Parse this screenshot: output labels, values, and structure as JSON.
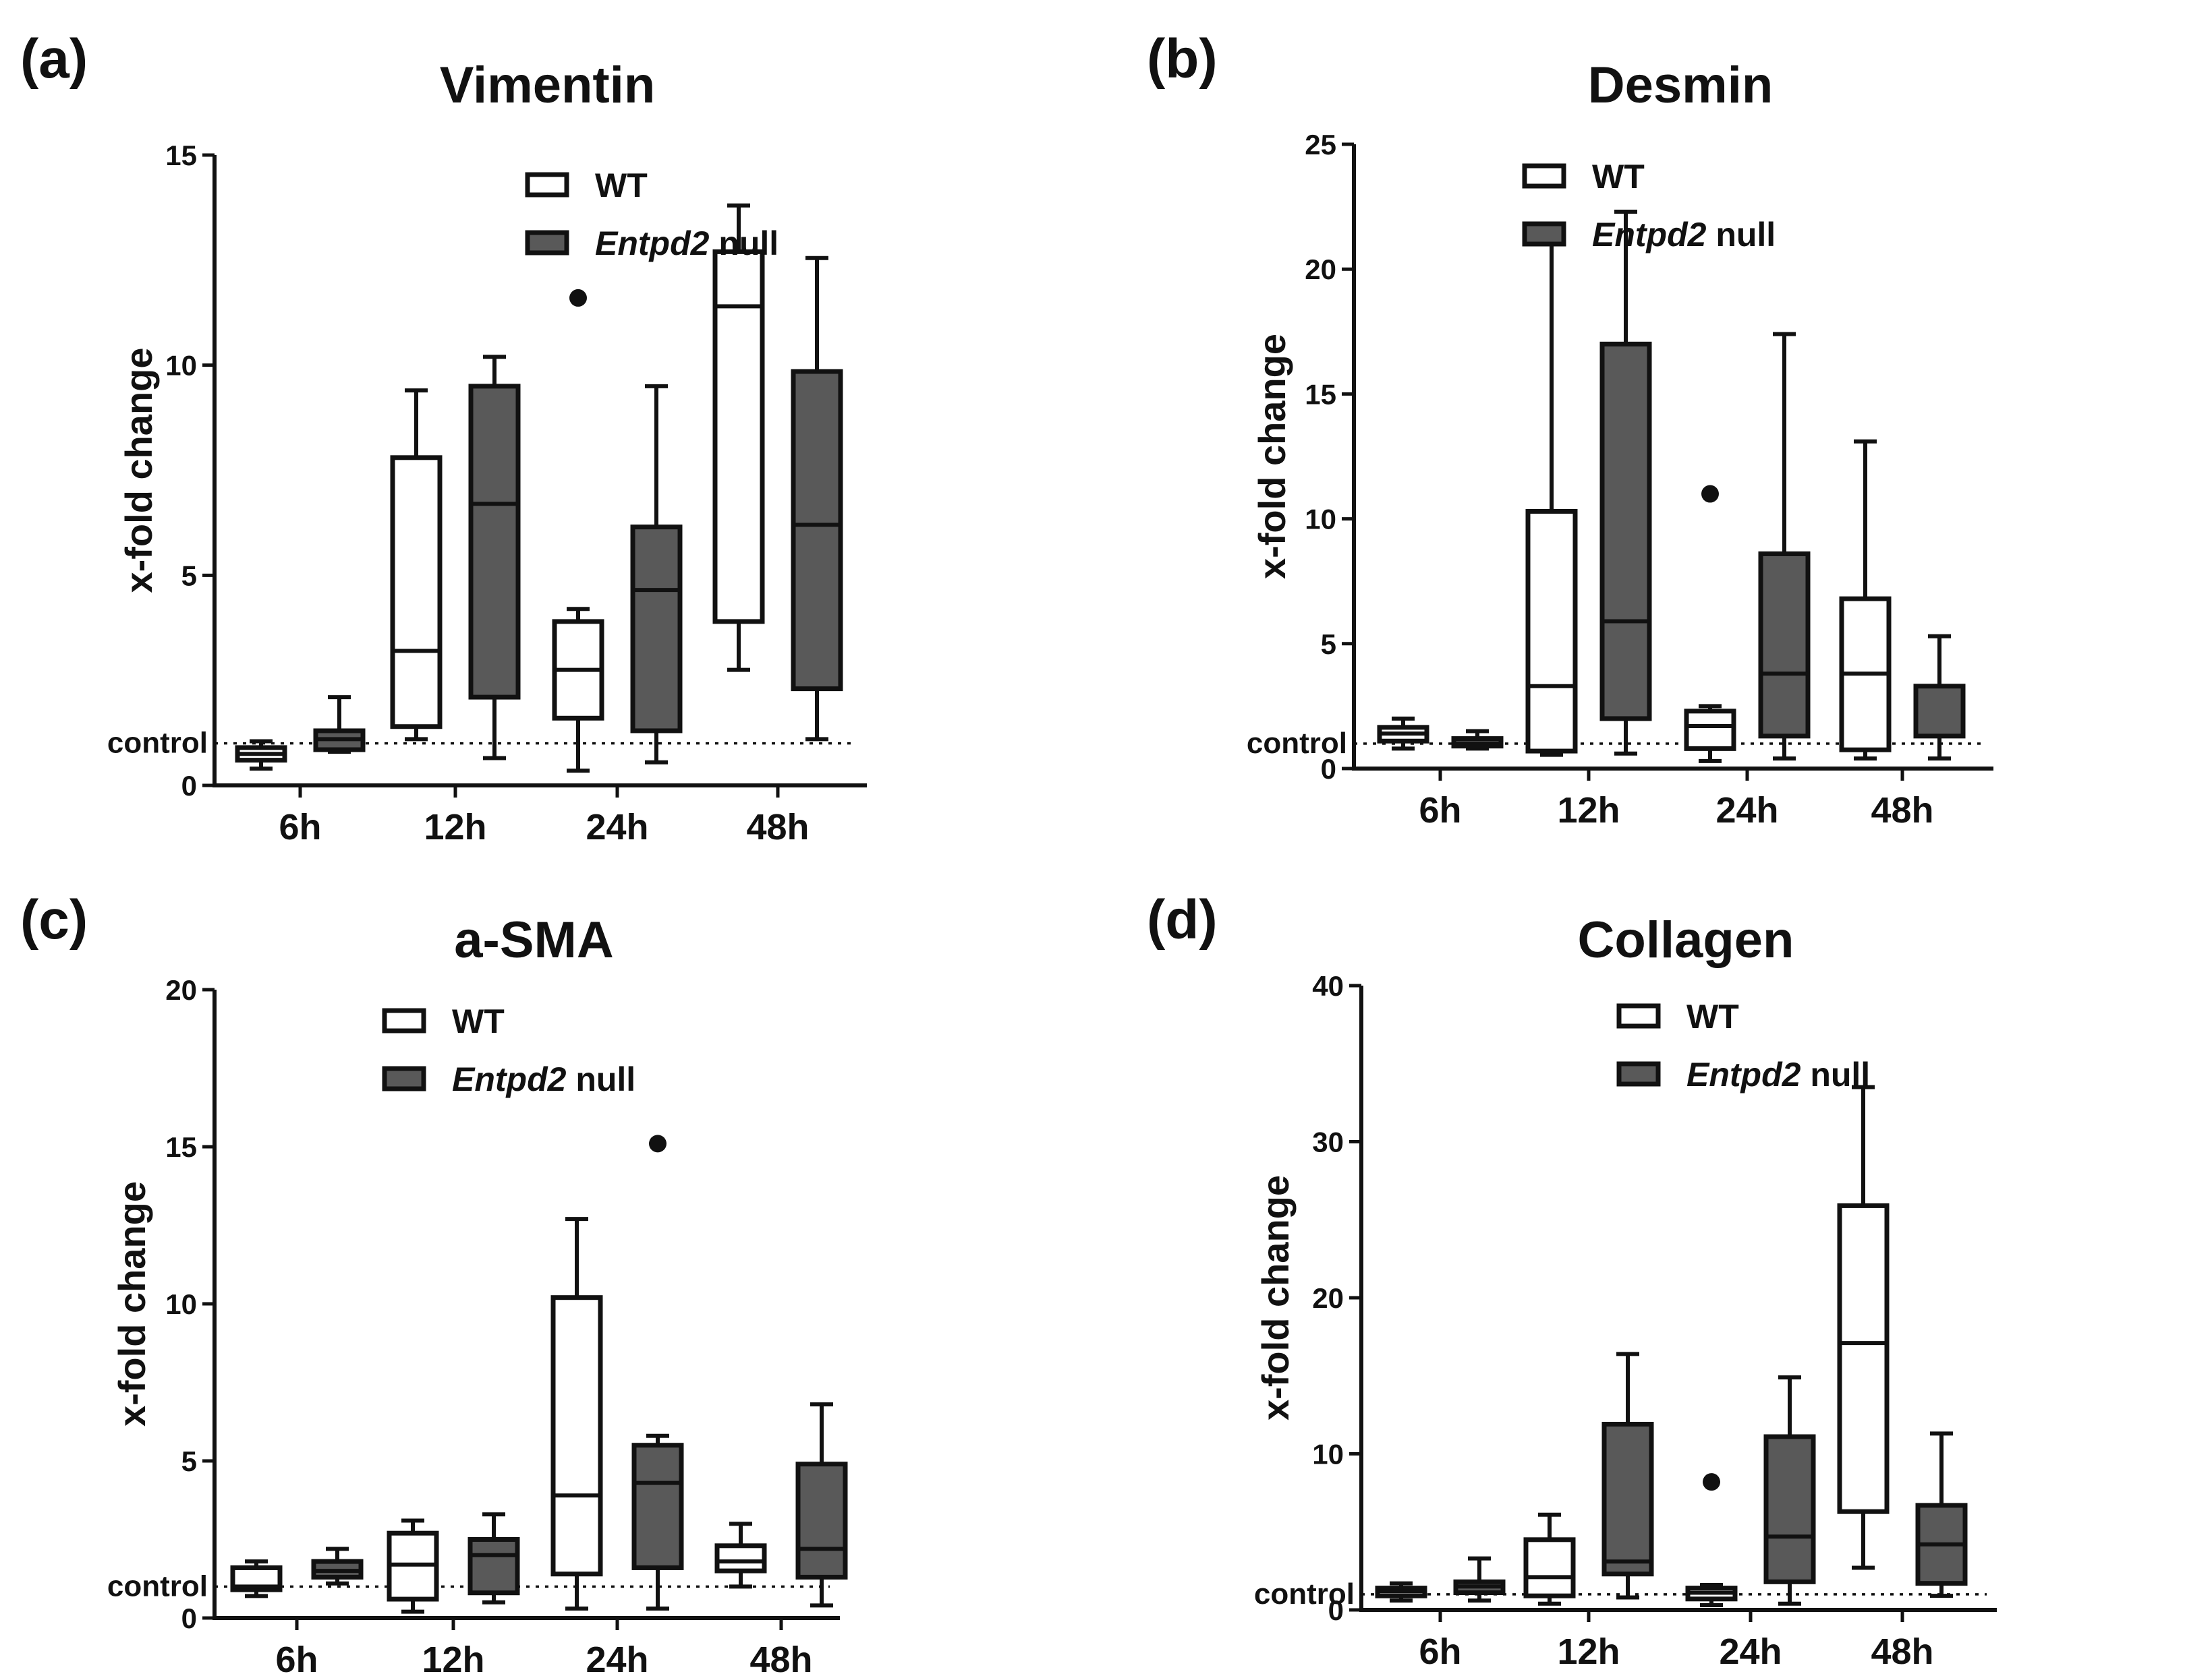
{
  "legend": {
    "wt_label": "WT",
    "null_italic": "Entpd2",
    "null_suffix": " null"
  },
  "colors": {
    "wt_fill": "#ffffff",
    "null_fill": "#595959",
    "stroke": "#111111"
  },
  "control_label": "control",
  "x_label_common": "x-fold change",
  "chart_data": [
    {
      "panel": "(a)",
      "type": "box",
      "title": "Vimentin",
      "ylabel": "x-fold change",
      "ylim": [
        0,
        15
      ],
      "yticks": [
        0,
        5,
        10,
        15
      ],
      "control_level": 1,
      "categories": [
        "6h",
        "12h",
        "24h",
        "48h"
      ],
      "series": [
        {
          "name": "WT",
          "boxes": [
            {
              "min": 0.4,
              "q1": 0.6,
              "median": 0.75,
              "q3": 0.9,
              "max": 1.05
            },
            {
              "min": 1.1,
              "q1": 1.4,
              "median": 3.2,
              "q3": 7.8,
              "max": 9.4
            },
            {
              "min": 0.35,
              "q1": 1.6,
              "median": 2.75,
              "q3": 3.9,
              "max": 4.2,
              "outliers": [
                11.6
              ]
            },
            {
              "min": 2.75,
              "q1": 3.9,
              "median": 11.4,
              "q3": 12.7,
              "max": 13.8
            }
          ]
        },
        {
          "name": "Entpd2 null",
          "boxes": [
            {
              "min": 0.8,
              "q1": 0.85,
              "median": 1.1,
              "q3": 1.3,
              "max": 2.1
            },
            {
              "min": 0.65,
              "q1": 2.1,
              "median": 6.7,
              "q3": 9.5,
              "max": 10.2
            },
            {
              "min": 0.55,
              "q1": 1.3,
              "median": 4.65,
              "q3": 6.15,
              "max": 9.5
            },
            {
              "min": 1.1,
              "q1": 2.3,
              "median": 6.2,
              "q3": 9.85,
              "max": 12.55
            }
          ]
        }
      ]
    },
    {
      "panel": "(b)",
      "type": "box",
      "title": "Desmin",
      "ylabel": "x-fold change",
      "ylim": [
        0,
        25
      ],
      "yticks": [
        0,
        5,
        10,
        15,
        20,
        25
      ],
      "control_level": 1,
      "categories": [
        "6h",
        "12h",
        "24h",
        "48h"
      ],
      "series": [
        {
          "name": "WT",
          "boxes": [
            {
              "min": 0.8,
              "q1": 1.1,
              "median": 1.4,
              "q3": 1.65,
              "max": 2.0
            },
            {
              "min": 0.55,
              "q1": 0.7,
              "median": 3.3,
              "q3": 10.3,
              "max": 21.7
            },
            {
              "min": 0.3,
              "q1": 0.8,
              "median": 1.7,
              "q3": 2.3,
              "max": 2.5,
              "outliers": [
                11.0
              ]
            },
            {
              "min": 0.4,
              "q1": 0.75,
              "median": 3.8,
              "q3": 6.8,
              "max": 13.1
            }
          ]
        },
        {
          "name": "Entpd2 null",
          "boxes": [
            {
              "min": 0.8,
              "q1": 0.9,
              "median": 1.0,
              "q3": 1.2,
              "max": 1.5
            },
            {
              "min": 0.6,
              "q1": 2.0,
              "median": 5.9,
              "q3": 17.0,
              "max": 22.3
            },
            {
              "min": 0.4,
              "q1": 1.3,
              "median": 3.8,
              "q3": 8.6,
              "max": 17.4
            },
            {
              "min": 0.4,
              "q1": 1.3,
              "median": 1.3,
              "q3": 3.3,
              "max": 5.3
            }
          ]
        }
      ]
    },
    {
      "panel": "(c)",
      "type": "box",
      "title": "a-SMA",
      "ylabel": "x-fold change",
      "ylim": [
        0,
        20
      ],
      "yticks": [
        0,
        5,
        10,
        15,
        20
      ],
      "control_level": 1,
      "categories": [
        "6h",
        "12h",
        "24h",
        "48h"
      ],
      "series": [
        {
          "name": "WT",
          "boxes": [
            {
              "min": 0.7,
              "q1": 0.9,
              "median": 1.0,
              "q3": 1.6,
              "max": 1.8
            },
            {
              "min": 0.2,
              "q1": 0.6,
              "median": 1.7,
              "q3": 2.7,
              "max": 3.1
            },
            {
              "min": 0.3,
              "q1": 1.4,
              "median": 3.9,
              "q3": 10.2,
              "max": 12.7
            },
            {
              "min": 1.0,
              "q1": 1.5,
              "median": 1.8,
              "q3": 2.3,
              "max": 3.0
            }
          ]
        },
        {
          "name": "Entpd2 null",
          "boxes": [
            {
              "min": 1.1,
              "q1": 1.3,
              "median": 1.5,
              "q3": 1.8,
              "max": 2.2
            },
            {
              "min": 0.5,
              "q1": 0.8,
              "median": 2.0,
              "q3": 2.5,
              "max": 3.3
            },
            {
              "min": 0.3,
              "q1": 1.6,
              "median": 4.3,
              "q3": 5.5,
              "max": 5.8,
              "outliers": [
                15.1
              ]
            },
            {
              "min": 0.4,
              "q1": 1.3,
              "median": 2.2,
              "q3": 4.9,
              "max": 6.8
            }
          ]
        }
      ]
    },
    {
      "panel": "(d)",
      "type": "box",
      "title": "Collagen",
      "ylabel": "x-fold change",
      "ylim": [
        0,
        40
      ],
      "yticks": [
        0,
        10,
        20,
        30,
        40
      ],
      "control_level": 1,
      "categories": [
        "6h",
        "12h",
        "24h",
        "48h"
      ],
      "series": [
        {
          "name": "WT",
          "boxes": [
            {
              "min": 0.6,
              "q1": 0.9,
              "median": 1.2,
              "q3": 1.4,
              "max": 1.7
            },
            {
              "min": 0.4,
              "q1": 0.9,
              "median": 2.1,
              "q3": 4.5,
              "max": 6.1
            },
            {
              "min": 0.3,
              "q1": 0.7,
              "median": 1.1,
              "q3": 1.4,
              "max": 1.6,
              "outliers": [
                8.2
              ]
            },
            {
              "min": 2.7,
              "q1": 6.3,
              "median": 17.1,
              "q3": 25.9,
              "max": 33.5
            }
          ]
        },
        {
          "name": "Entpd2 null",
          "boxes": [
            {
              "min": 0.6,
              "q1": 1.1,
              "median": 1.5,
              "q3": 1.8,
              "max": 3.3
            },
            {
              "min": 0.8,
              "q1": 2.3,
              "median": 3.1,
              "q3": 11.9,
              "max": 16.4
            },
            {
              "min": 0.4,
              "q1": 1.8,
              "median": 4.7,
              "q3": 11.1,
              "max": 14.9
            },
            {
              "min": 0.9,
              "q1": 1.7,
              "median": 4.2,
              "q3": 6.7,
              "max": 11.3
            }
          ]
        }
      ]
    }
  ]
}
